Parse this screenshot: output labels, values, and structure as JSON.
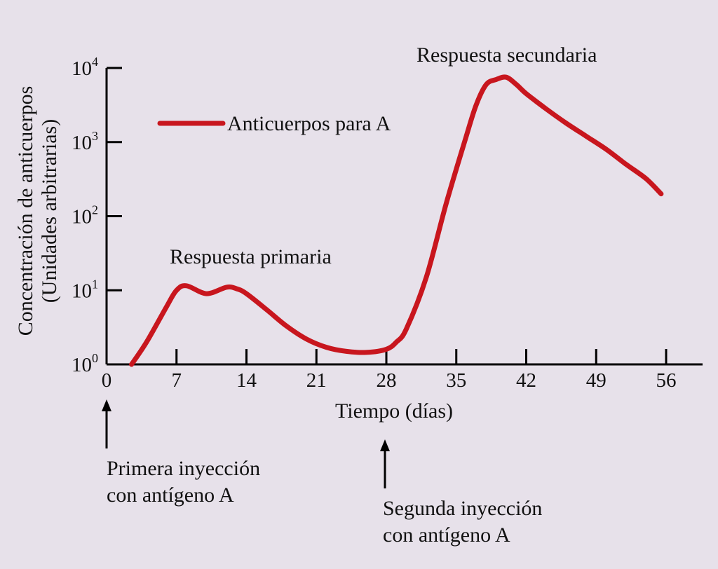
{
  "chart_data": {
    "type": "line",
    "xlabel": "Tiempo (días)",
    "ylabel": "Concentración de anticuerpos",
    "ylabel_sub": "(Unidades arbitrarias)",
    "xlim": [
      0,
      56
    ],
    "ylim": [
      1,
      10000
    ],
    "y_scale": "log",
    "x_ticks": [
      0,
      7,
      14,
      21,
      28,
      35,
      42,
      49,
      56
    ],
    "x_tick_labels": [
      "0",
      "7",
      "14",
      "21",
      "28",
      "35",
      "42",
      "49",
      "56"
    ],
    "y_ticks": [
      1,
      10,
      100,
      1000,
      10000
    ],
    "y_tick_labels": [
      {
        "base": "10",
        "exp": "0"
      },
      {
        "base": "10",
        "exp": "1"
      },
      {
        "base": "10",
        "exp": "2"
      },
      {
        "base": "10",
        "exp": "3"
      },
      {
        "base": "10",
        "exp": "4"
      }
    ],
    "grid": false,
    "legend_position": "upper-left",
    "series": [
      {
        "name": "Anticuerpos para A",
        "color": "#c8161e",
        "x": [
          2.5,
          4,
          6,
          7,
          8,
          10,
          12,
          13,
          14,
          16,
          18,
          20,
          22,
          24,
          26,
          28,
          29,
          30,
          32,
          34,
          36,
          37,
          38,
          39,
          40,
          41,
          42,
          44,
          46,
          48,
          50,
          52,
          54,
          55.5
        ],
        "y": [
          1,
          2,
          6,
          10,
          11.5,
          9,
          11,
          10.5,
          9,
          5.5,
          3.3,
          2.2,
          1.7,
          1.5,
          1.45,
          1.6,
          2,
          3,
          15,
          150,
          1200,
          3200,
          6000,
          7000,
          7500,
          6000,
          4500,
          2800,
          1800,
          1200,
          800,
          500,
          320,
          200
        ]
      }
    ],
    "annotations": {
      "primary_response": "Respuesta primaria",
      "secondary_response": "Respuesta secundaria",
      "first_injection": {
        "line1": "Primera inyección",
        "line2": "con antígeno A",
        "x": 0
      },
      "second_injection": {
        "line1": "Segunda inyección",
        "line2": "con antígeno A",
        "x": 28
      }
    }
  }
}
